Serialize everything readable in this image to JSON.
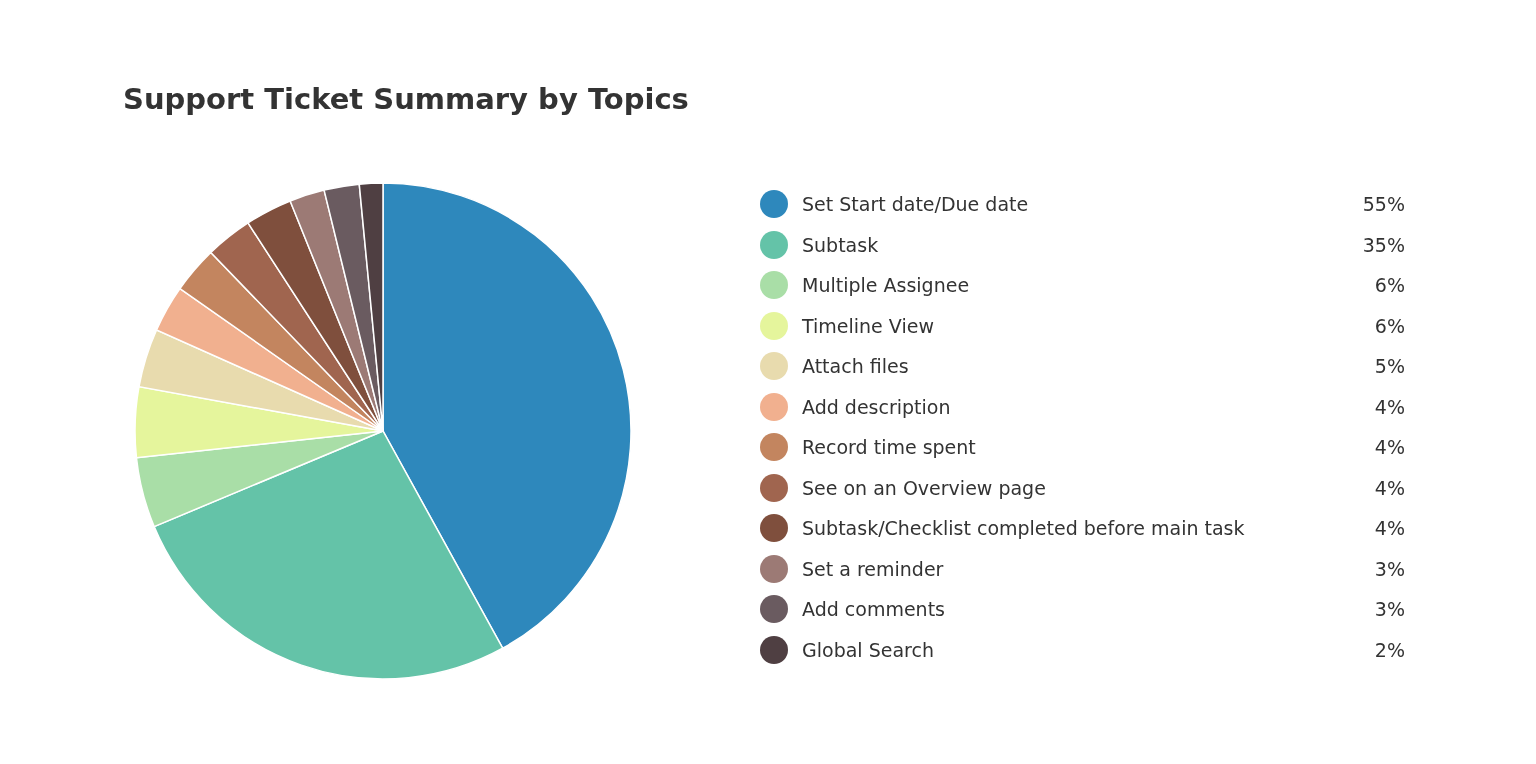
{
  "chart_data": {
    "type": "pie",
    "title": "Support Ticket Summary by Topics",
    "categories": [
      "Set Start date/Due date",
      "Subtask",
      "Multiple Assignee",
      "Timeline View",
      "Attach files",
      "Add description",
      "Record time spent",
      "See on an Overview page",
      "Subtask/Checklist completed before main task",
      "Set a reminder",
      "Add comments",
      "Global Search"
    ],
    "values": [
      55,
      35,
      6,
      6,
      5,
      4,
      4,
      4,
      4,
      3,
      3,
      2
    ],
    "colors": [
      "#2e88bc",
      "#64c3a8",
      "#a9dea7",
      "#e5f59c",
      "#e8dbae",
      "#f1b08f",
      "#c3855f",
      "#a0654f",
      "#7f4f3d",
      "#9c7a75",
      "#6a5b60",
      "#4f3f42"
    ],
    "value_labels": [
      "55%",
      "35%",
      "6%",
      "6%",
      "5%",
      "4%",
      "4%",
      "4%",
      "4%",
      "3%",
      "3%",
      "2%"
    ],
    "legend": "right"
  }
}
